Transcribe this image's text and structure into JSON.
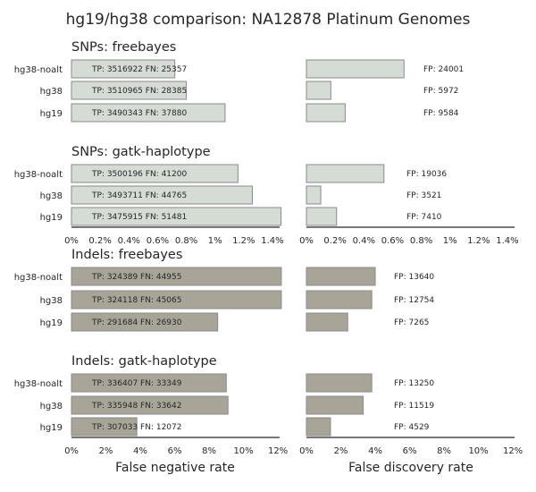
{
  "title": "hg19/hg38 comparison: NA12878 Platinum Genomes",
  "colors": {
    "snp_bar": "#d5dbd5",
    "indel_bar": "#a8a598",
    "bar_edge": "#8a8a8a",
    "axis": "#262626"
  },
  "chart_data": [
    {
      "type": "bar",
      "orientation": "horizontal",
      "panel": "SNPs: freebayes",
      "categories": [
        "hg38-noalt",
        "hg38",
        "hg19"
      ],
      "fn_rate_pct": [
        0.72,
        0.8,
        1.07
      ],
      "fdr_pct": [
        0.68,
        0.17,
        0.27
      ],
      "bar_labels": [
        "TP: 3516922 FN: 25357",
        "TP: 3510965 FN: 28385",
        "TP: 3490343 FN: 37880"
      ],
      "fp_labels": [
        "FP: 24001",
        "FP: 5972",
        "FP: 9584"
      ]
    },
    {
      "type": "bar",
      "orientation": "horizontal",
      "panel": "SNPs: gatk-haplotype",
      "categories": [
        "hg38-noalt",
        "hg38",
        "hg19"
      ],
      "fn_rate_pct": [
        1.16,
        1.26,
        1.46
      ],
      "fdr_pct": [
        0.54,
        0.1,
        0.21
      ],
      "bar_labels": [
        "TP: 3500196 FN: 41200",
        "TP: 3493711 FN: 44765",
        "TP: 3475915 FN: 51481"
      ],
      "fp_labels": [
        "FP: 19036",
        "FP: 3521",
        "FP: 7410"
      ]
    },
    {
      "type": "bar",
      "orientation": "horizontal",
      "panel": "Indels: freebayes",
      "categories": [
        "hg38-noalt",
        "hg38",
        "hg19"
      ],
      "fn_rate_pct": [
        12.2,
        12.2,
        8.5
      ],
      "fdr_pct": [
        4.0,
        3.8,
        2.4
      ],
      "bar_labels": [
        "TP: 324389 FN: 44955",
        "TP: 324118 FN: 45065",
        "TP: 291684 FN: 26930"
      ],
      "fp_labels": [
        "FP: 13640",
        "FP: 12754",
        "FP: 7265"
      ]
    },
    {
      "type": "bar",
      "orientation": "horizontal",
      "panel": "Indels: gatk-haplotype",
      "categories": [
        "hg38-noalt",
        "hg38",
        "hg19"
      ],
      "fn_rate_pct": [
        9.0,
        9.1,
        3.8
      ],
      "fdr_pct": [
        3.8,
        3.3,
        1.4
      ],
      "bar_labels": [
        "TP: 336407 FN: 33349",
        "TP: 335948 FN: 33642",
        "TP: 307033 FN: 12072"
      ],
      "fp_labels": [
        "FP: 13250",
        "FP: 11519",
        "FP: 4529"
      ]
    }
  ],
  "axes": {
    "snp": {
      "xlim": [
        0,
        1.45
      ],
      "ticks": [
        0,
        0.2,
        0.4,
        0.6,
        0.8,
        1.0,
        1.2,
        1.4
      ],
      "tick_labels": [
        "0%",
        "0.2%",
        "0.4%",
        "0.6%",
        "0.8%",
        "1%",
        "1.2%",
        "1.4%"
      ]
    },
    "indel": {
      "xlim": [
        0,
        12.1
      ],
      "ticks": [
        0,
        2,
        4,
        6,
        8,
        10,
        12
      ],
      "tick_labels": [
        "0%",
        "2%",
        "4%",
        "6%",
        "8%",
        "10%",
        "12%"
      ]
    },
    "xlabel_left": "False negative rate",
    "xlabel_right": "False discovery rate",
    "grid": false
  }
}
